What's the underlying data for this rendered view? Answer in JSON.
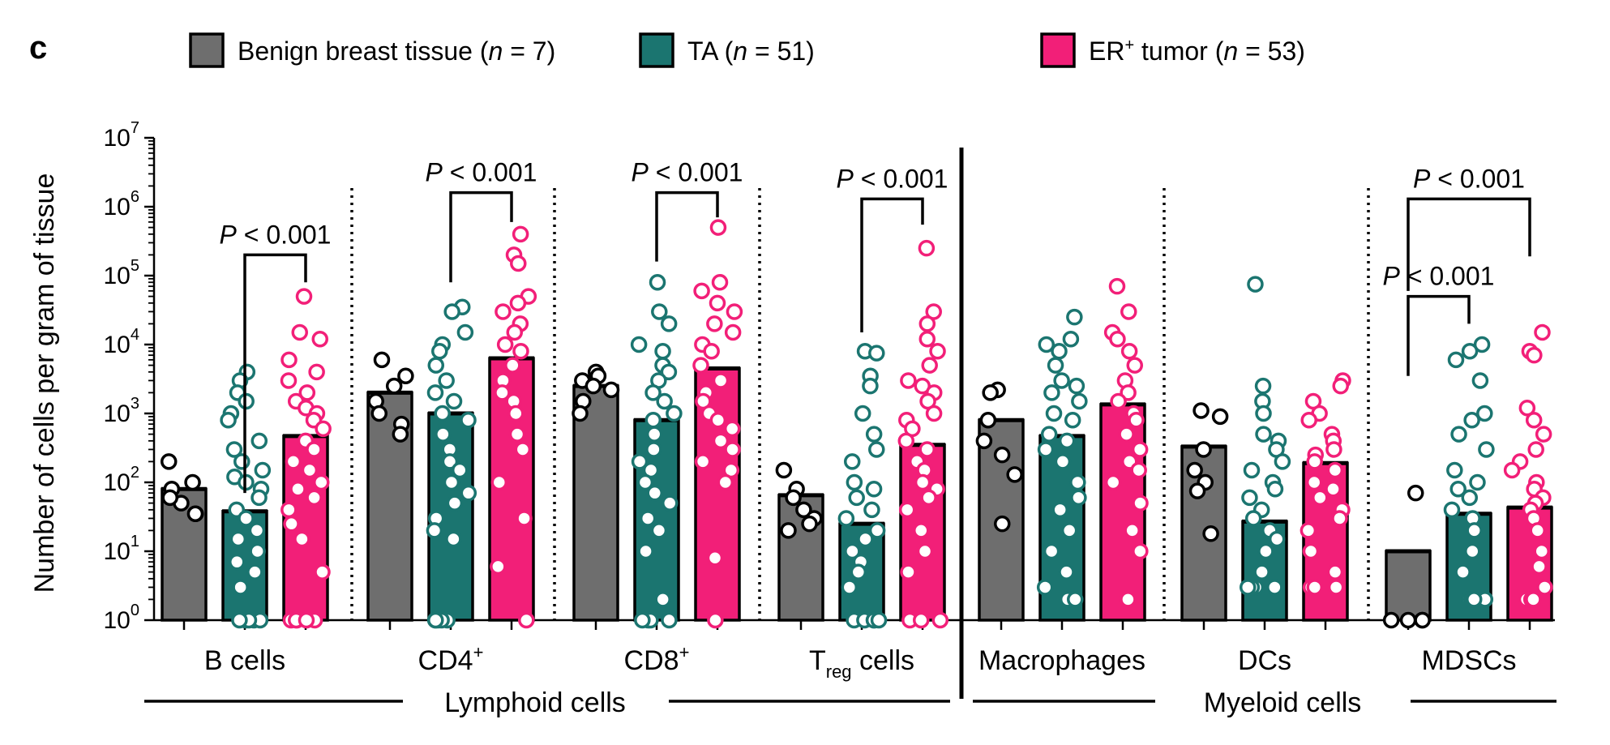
{
  "panel_label": "c",
  "legend": [
    {
      "key": "benign",
      "label": "Benign breast tissue",
      "n_text": "n",
      "n_value": " = 7)",
      "color": "#6e6e6e"
    },
    {
      "key": "ta",
      "label": "TA",
      "n_text": "n",
      "n_value": " = 51)",
      "color": "#1b7570"
    },
    {
      "key": "er",
      "label": "ER",
      "sup": "+",
      "suffix": " tumor",
      "n_text": "n",
      "n_value": " = 53)",
      "color": "#f21f78"
    }
  ],
  "chart_data": {
    "type": "bar",
    "ylabel": "Number of cells per gram of tissue",
    "yscale": "log10",
    "ylim": [
      1,
      10000000
    ],
    "yticks": [
      {
        "base": "10",
        "exp": "0",
        "value": 1
      },
      {
        "base": "10",
        "exp": "1",
        "value": 10
      },
      {
        "base": "10",
        "exp": "2",
        "value": 100
      },
      {
        "base": "10",
        "exp": "3",
        "value": 1000
      },
      {
        "base": "10",
        "exp": "4",
        "value": 10000
      },
      {
        "base": "10",
        "exp": "5",
        "value": 100000
      },
      {
        "base": "10",
        "exp": "6",
        "value": 1000000
      },
      {
        "base": "10",
        "exp": "7",
        "value": 10000000
      }
    ],
    "series": [
      {
        "name": "Benign breast tissue",
        "key": "benign"
      },
      {
        "name": "TA",
        "key": "ta"
      },
      {
        "name": "ER+ tumor",
        "key": "er"
      }
    ],
    "categories": [
      {
        "label": "B cells",
        "bars": [
          80,
          38,
          470
        ],
        "points": [
          [
            100,
            200,
            50,
            35,
            80,
            35,
            60
          ],
          [
            4000,
            3000,
            2000,
            1500,
            1000,
            800,
            400,
            300,
            200,
            150,
            120,
            100,
            80,
            60,
            40,
            30,
            20,
            15,
            10,
            7,
            5,
            3,
            1,
            1,
            1,
            1,
            1
          ],
          [
            50000,
            15000,
            12000,
            6000,
            4000,
            3000,
            2000,
            1500,
            1200,
            1000,
            800,
            600,
            400,
            300,
            200,
            150,
            100,
            80,
            60,
            40,
            25,
            15,
            5,
            1,
            1,
            1,
            1,
            1
          ]
        ]
      },
      {
        "label": "CD4",
        "sup": "+",
        "bars": [
          2000,
          1000,
          6300
        ],
        "points": [
          [
            6000,
            3500,
            2500,
            1500,
            1000,
            700,
            500
          ],
          [
            35000,
            30000,
            15000,
            10000,
            8000,
            5000,
            3000,
            2000,
            1500,
            1000,
            800,
            500,
            300,
            200,
            150,
            100,
            70,
            50,
            30,
            20,
            15,
            1,
            1,
            1,
            1,
            1
          ],
          [
            400000,
            200000,
            150000,
            50000,
            40000,
            30000,
            20000,
            15000,
            10000,
            8000,
            5000,
            3000,
            2000,
            1500,
            1000,
            500,
            300,
            100,
            30,
            6,
            1
          ]
        ]
      },
      {
        "label": "CD8",
        "sup": "+",
        "bars": [
          2500,
          800,
          4500
        ],
        "points": [
          [
            4000,
            3500,
            3000,
            2500,
            2200,
            1500,
            1000
          ],
          [
            80000,
            30000,
            20000,
            10000,
            8000,
            5000,
            4000,
            3000,
            2000,
            1500,
            1000,
            800,
            500,
            300,
            200,
            150,
            100,
            70,
            50,
            30,
            20,
            10,
            2,
            1,
            1,
            1,
            1
          ],
          [
            500000,
            80000,
            60000,
            40000,
            30000,
            20000,
            15000,
            10000,
            8000,
            5000,
            3000,
            2000,
            1500,
            1000,
            800,
            600,
            400,
            300,
            200,
            150,
            100,
            8,
            1
          ]
        ]
      },
      {
        "label": "T",
        "sub": "reg",
        "suffix": " cells",
        "bars": [
          65,
          25,
          350
        ],
        "points": [
          [
            150,
            80,
            60,
            40,
            30,
            25,
            20
          ],
          [
            8000,
            7500,
            3500,
            2500,
            1000,
            500,
            300,
            200,
            100,
            80,
            60,
            40,
            30,
            20,
            15,
            10,
            7,
            5,
            3,
            1,
            1,
            1,
            1,
            1
          ],
          [
            250000,
            30000,
            20000,
            12000,
            8000,
            5000,
            3000,
            2500,
            2000,
            1500,
            1000,
            800,
            600,
            400,
            300,
            200,
            150,
            100,
            80,
            60,
            40,
            20,
            10,
            5,
            1,
            1,
            1
          ]
        ]
      },
      {
        "label": "Macrophages",
        "bars": [
          800,
          470,
          1350
        ],
        "points": [
          [
            2200,
            2000,
            800,
            400,
            250,
            130,
            25
          ],
          [
            25000,
            12000,
            10000,
            8000,
            5000,
            3000,
            2500,
            2000,
            1500,
            1000,
            800,
            500,
            400,
            300,
            200,
            100,
            60,
            40,
            20,
            10,
            5,
            3,
            2,
            2
          ],
          [
            70000,
            30000,
            15000,
            12000,
            8000,
            5000,
            3000,
            2000,
            1500,
            1000,
            800,
            500,
            300,
            200,
            150,
            100,
            50,
            20,
            10,
            2
          ]
        ]
      },
      {
        "label": "DCs",
        "bars": [
          330,
          27,
          190
        ],
        "points": [
          [
            1100,
            900,
            300,
            150,
            100,
            75,
            18
          ],
          [
            75000,
            2500,
            1500,
            1000,
            500,
            400,
            300,
            200,
            150,
            100,
            80,
            60,
            40,
            30,
            20,
            15,
            10,
            5,
            3,
            3,
            3,
            3
          ],
          [
            3000,
            2500,
            1500,
            1000,
            800,
            500,
            400,
            300,
            250,
            200,
            150,
            100,
            80,
            60,
            40,
            30,
            20,
            10,
            5,
            3,
            3,
            3
          ]
        ]
      },
      {
        "label": "MDSCs",
        "bars": [
          10,
          35,
          43
        ],
        "points": [
          [
            70,
            1,
            1,
            1,
            1
          ],
          [
            10000,
            8000,
            6000,
            3000,
            1000,
            800,
            500,
            300,
            150,
            100,
            80,
            60,
            40,
            30,
            20,
            10,
            5,
            2,
            2,
            2,
            2
          ],
          [
            15000,
            8000,
            7000,
            1200,
            800,
            500,
            300,
            200,
            150,
            100,
            80,
            60,
            50,
            40,
            30,
            20,
            10,
            6,
            3,
            2,
            2,
            2,
            2
          ]
        ]
      }
    ],
    "comparisons": [
      {
        "category": 0,
        "from": 1,
        "to": 2,
        "text": "P",
        "rest": " < 0.001",
        "y_value": 200000,
        "left_drop": 70,
        "right_drop": 80000
      },
      {
        "category": 1,
        "from": 1,
        "to": 2,
        "text": "P",
        "rest": " < 0.001",
        "y_value": 1600000,
        "left_drop": 80000,
        "right_drop": 600000
      },
      {
        "category": 2,
        "from": 1,
        "to": 2,
        "text": "P",
        "rest": " < 0.001",
        "y_value": 1600000,
        "left_drop": 160000,
        "right_drop": 700000
      },
      {
        "category": 3,
        "from": 1,
        "to": 2,
        "text": "P",
        "rest": " < 0.001",
        "y_value": 1300000,
        "left_drop": 15000,
        "right_drop": 550000
      },
      {
        "category": 6,
        "from": 0,
        "to": 2,
        "text": "P",
        "rest": " < 0.001",
        "y_value": 1300000,
        "left_drop": 60000,
        "right_drop": 190000
      },
      {
        "category": 6,
        "from": 0,
        "to": 1,
        "text": "P",
        "rest": " < 0.001",
        "y_value": 50000,
        "left_drop": 3500,
        "right_drop": 20000
      }
    ],
    "groups": [
      {
        "label": "Lymphoid cells",
        "from": 0,
        "to": 3
      },
      {
        "label": "Myeloid cells",
        "from": 4,
        "to": 6
      }
    ]
  }
}
